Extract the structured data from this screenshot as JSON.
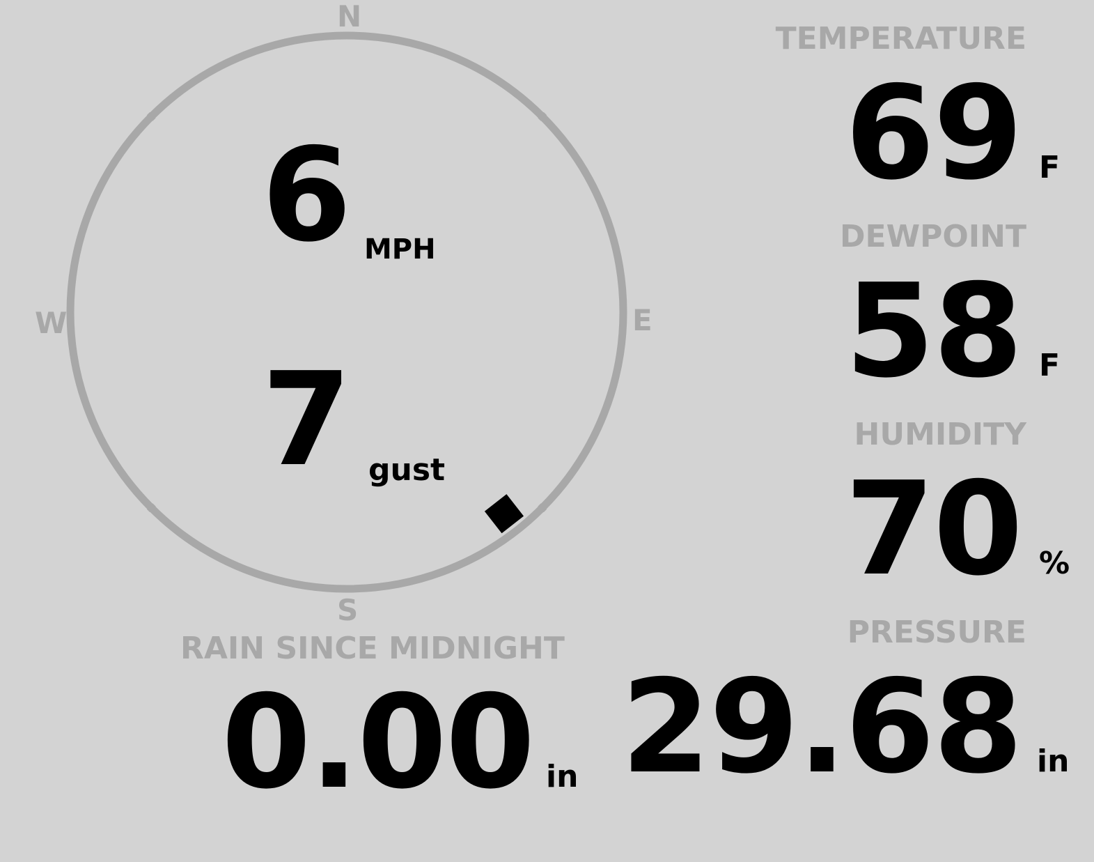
{
  "wind": {
    "speed": "6",
    "speed_unit": "MPH",
    "gust": "7",
    "gust_label": "gust",
    "direction_deg": 142,
    "compass": {
      "n": "N",
      "e": "E",
      "s": "S",
      "w": "W"
    }
  },
  "temperature": {
    "label": "TEMPERATURE",
    "value": "69",
    "unit": "F"
  },
  "dewpoint": {
    "label": "DEWPOINT",
    "value": "58",
    "unit": "F"
  },
  "humidity": {
    "label": "HUMIDITY",
    "value": "70",
    "unit": "%"
  },
  "rain": {
    "label": "RAIN SINCE MIDNIGHT",
    "value": "0.00",
    "unit": "in"
  },
  "pressure": {
    "label": "PRESSURE",
    "value": "29.68",
    "unit": "in"
  },
  "colors": {
    "background": "#d3d3d3",
    "label": "#a8a8a8",
    "value": "#000000",
    "ring": "#a8a8a8"
  }
}
